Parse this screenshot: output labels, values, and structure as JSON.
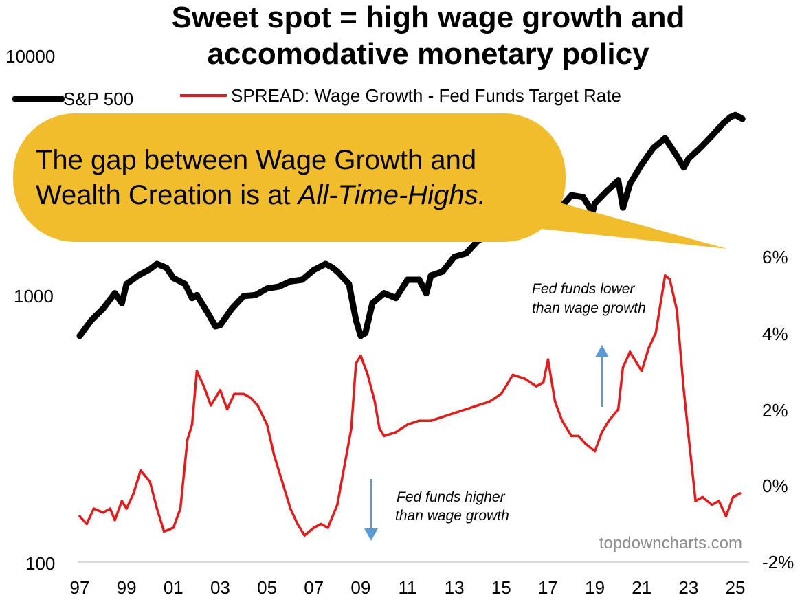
{
  "chart_data": {
    "type": "line",
    "title": [
      "Sweet spot = high wage growth and",
      "accomodative monetary policy"
    ],
    "x_tick_labels": [
      "97",
      "99",
      "01",
      "03",
      "05",
      "07",
      "09",
      "11",
      "13",
      "15",
      "17",
      "19",
      "21",
      "23",
      "25"
    ],
    "left_axis": {
      "scale": "log",
      "ticks": [
        "10000",
        "1000",
        "100"
      ],
      "ylim": [
        100,
        10000
      ]
    },
    "right_axis": {
      "scale": "linear",
      "ticks": [
        "6%",
        "4%",
        "2%",
        "0%",
        "-2%"
      ],
      "ylim": [
        -2,
        6
      ]
    },
    "series": [
      {
        "name": "S&P 500",
        "axis": "left",
        "color": "#000000",
        "x": [
          1997.0,
          1997.5,
          1998.0,
          1998.5,
          1998.8,
          1999.0,
          1999.5,
          2000.0,
          2000.3,
          2000.7,
          2001.0,
          2001.5,
          2001.8,
          2002.0,
          2002.5,
          2002.8,
          2003.0,
          2003.5,
          2004.0,
          2004.5,
          2005.0,
          2005.5,
          2006.0,
          2006.5,
          2007.0,
          2007.5,
          2007.8,
          2008.0,
          2008.5,
          2008.8,
          2009.0,
          2009.2,
          2009.5,
          2010.0,
          2010.5,
          2011.0,
          2011.5,
          2011.8,
          2012.0,
          2012.5,
          2013.0,
          2013.5,
          2014.0,
          2014.5,
          2015.0,
          2015.5,
          2015.7,
          2016.0,
          2016.5,
          2017.0,
          2017.5,
          2018.0,
          2018.5,
          2018.9,
          2019.0,
          2019.5,
          2020.0,
          2020.2,
          2020.5,
          2021.0,
          2021.5,
          2022.0,
          2022.5,
          2022.8,
          2023.0,
          2023.5,
          2024.0,
          2024.5,
          2024.8,
          2025.0,
          2025.3
        ],
        "values": [
          780,
          900,
          1000,
          1150,
          1050,
          1250,
          1350,
          1430,
          1500,
          1450,
          1320,
          1250,
          1100,
          1130,
          950,
          850,
          860,
          1000,
          1120,
          1130,
          1200,
          1220,
          1280,
          1300,
          1420,
          1500,
          1450,
          1400,
          1250,
          900,
          780,
          800,
          1050,
          1150,
          1100,
          1300,
          1300,
          1150,
          1350,
          1400,
          1600,
          1650,
          1850,
          1960,
          2050,
          2080,
          1950,
          2000,
          2150,
          2300,
          2480,
          2800,
          2750,
          2400,
          2600,
          2900,
          3200,
          2500,
          3100,
          3700,
          4300,
          4700,
          4000,
          3600,
          3900,
          4300,
          4800,
          5400,
          5700,
          5800,
          5600
        ]
      },
      {
        "name": "SPREAD: Wage Growth - Fed Funds Target Rate",
        "axis": "right",
        "color": "#e31b1b",
        "x": [
          1997.0,
          1997.3,
          1997.6,
          1998.0,
          1998.3,
          1998.5,
          1998.8,
          1999.0,
          1999.3,
          1999.6,
          2000.0,
          2000.3,
          2000.6,
          2001.0,
          2001.3,
          2001.6,
          2001.8,
          2002.0,
          2002.3,
          2002.6,
          2003.0,
          2003.3,
          2003.6,
          2004.0,
          2004.3,
          2004.6,
          2005.0,
          2005.3,
          2005.6,
          2006.0,
          2006.3,
          2006.6,
          2007.0,
          2007.3,
          2007.6,
          2008.0,
          2008.3,
          2008.6,
          2008.8,
          2009.0,
          2009.3,
          2009.6,
          2009.8,
          2010.0,
          2010.5,
          2011.0,
          2011.5,
          2012.0,
          2012.5,
          2013.0,
          2013.5,
          2014.0,
          2014.5,
          2015.0,
          2015.5,
          2016.0,
          2016.5,
          2016.8,
          2017.0,
          2017.3,
          2017.6,
          2018.0,
          2018.3,
          2018.6,
          2019.0,
          2019.3,
          2019.6,
          2020.0,
          2020.2,
          2020.5,
          2020.8,
          2021.0,
          2021.3,
          2021.6,
          2022.0,
          2022.2,
          2022.5,
          2022.8,
          2023.0,
          2023.3,
          2023.6,
          2024.0,
          2024.3,
          2024.6,
          2024.9,
          2025.2
        ],
        "values": [
          -0.8,
          -1.0,
          -0.6,
          -0.7,
          -0.6,
          -0.9,
          -0.4,
          -0.6,
          -0.2,
          0.4,
          0.1,
          -0.6,
          -1.2,
          -1.1,
          -0.6,
          1.2,
          1.6,
          3.0,
          2.6,
          2.1,
          2.5,
          2.0,
          2.4,
          2.4,
          2.3,
          2.1,
          1.6,
          0.8,
          0.2,
          -0.6,
          -1.0,
          -1.3,
          -1.1,
          -1.0,
          -1.1,
          -0.5,
          0.5,
          1.5,
          3.2,
          3.4,
          2.9,
          2.2,
          1.5,
          1.3,
          1.4,
          1.6,
          1.7,
          1.7,
          1.8,
          1.9,
          2.0,
          2.1,
          2.2,
          2.4,
          2.9,
          2.8,
          2.6,
          2.7,
          3.3,
          2.2,
          1.7,
          1.3,
          1.3,
          1.1,
          0.9,
          1.4,
          1.7,
          2.0,
          3.1,
          3.5,
          3.2,
          3.0,
          3.6,
          4.0,
          5.5,
          5.4,
          4.6,
          2.5,
          1.3,
          -0.4,
          -0.3,
          -0.5,
          -0.4,
          -0.8,
          -0.3,
          -0.2
        ]
      }
    ],
    "callout": {
      "line1": "The gap between Wage Growth and",
      "line2_prefix": "Wealth Creation is at ",
      "line2_italic": "All-Time-Highs."
    },
    "annotations": {
      "upper": [
        "Fed funds lower",
        "than wage growth"
      ],
      "lower": [
        "Fed funds higher",
        "than wage growth"
      ]
    },
    "source": "topdowncharts.com",
    "colors": {
      "sp500": "#000000",
      "spread": "#e31b1b",
      "callout": "#f1bd2c",
      "arrow": "#5b9bd5",
      "axis": "#d9d9d9"
    }
  }
}
